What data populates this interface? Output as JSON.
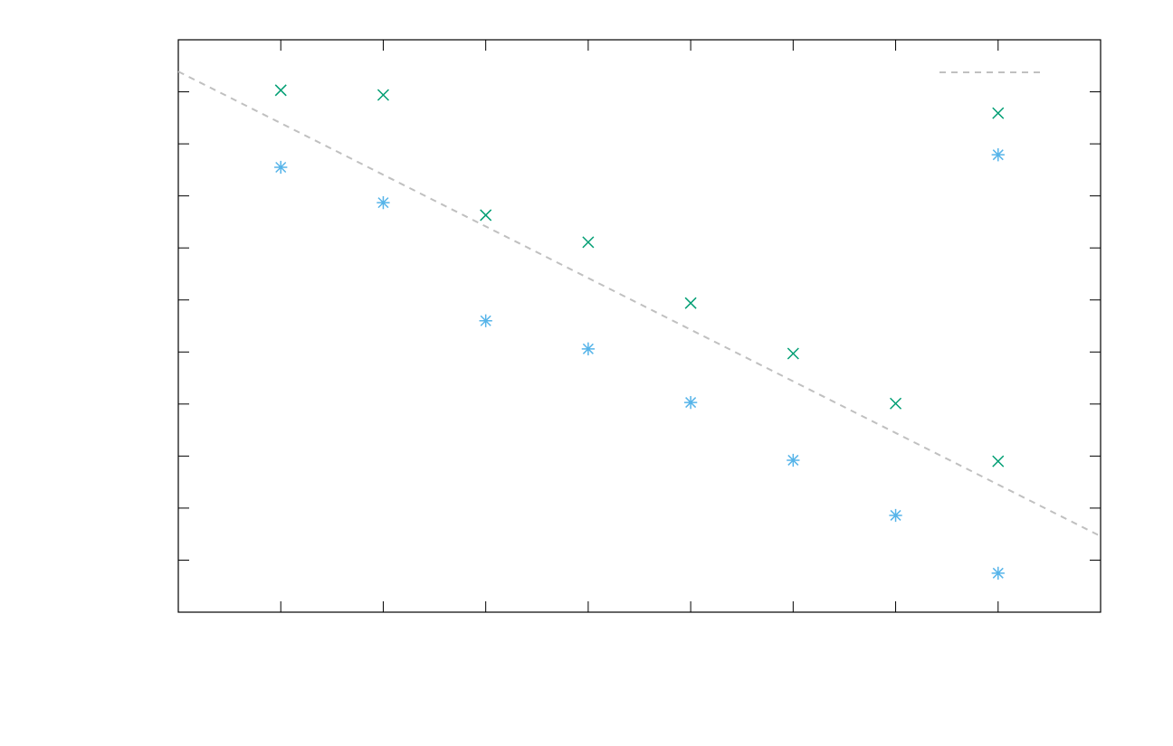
{
  "chart_data": {
    "type": "scatter",
    "xlim": [
      0,
      9
    ],
    "xticks": [
      1,
      2,
      3,
      4,
      5,
      6,
      7,
      8
    ],
    "ylim": [
      0,
      11
    ],
    "yticks": [
      1,
      2,
      3,
      4,
      5,
      6,
      7,
      8,
      9,
      10
    ],
    "mirror_ticks": true,
    "series": [
      {
        "color": "#009e73",
        "marker": "cross",
        "x": [
          1,
          2,
          3,
          4,
          5,
          6,
          7,
          8,
          8
        ],
        "values": [
          10.03,
          9.94,
          7.63,
          7.11,
          5.94,
          4.97,
          4.01,
          9.59,
          2.9
        ]
      },
      {
        "color": "#56b4e9",
        "marker": "asterisk",
        "x": [
          1,
          2,
          3,
          4,
          5,
          6,
          7,
          8,
          8
        ],
        "values": [
          8.55,
          7.87,
          5.6,
          5.06,
          4.03,
          2.92,
          1.86,
          8.79,
          0.75
        ]
      },
      {
        "color": "#c0c0c0",
        "marker": "dashed-line",
        "legend": "top-right",
        "x": [
          0,
          9
        ],
        "values": [
          10.39,
          1.46
        ]
      }
    ]
  }
}
